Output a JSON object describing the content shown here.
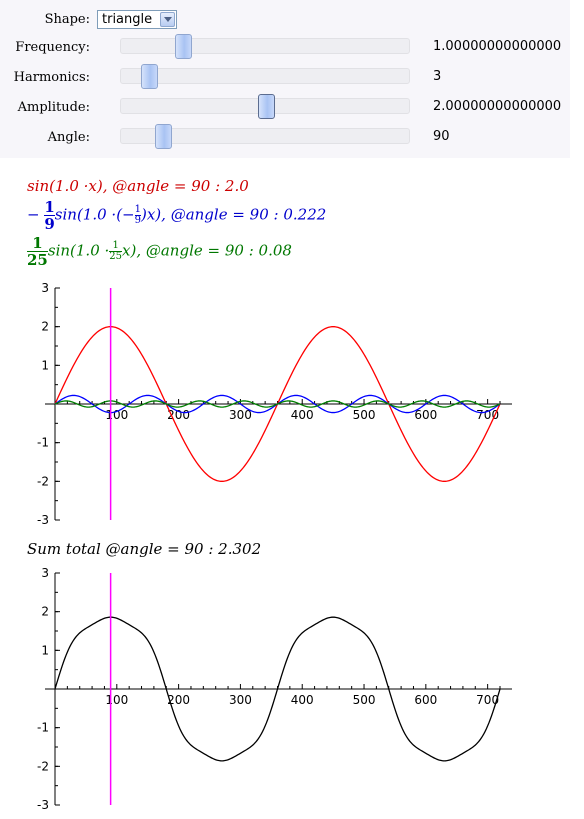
{
  "controls": {
    "shape": {
      "label": "Shape:",
      "value": "triangle"
    },
    "frequency": {
      "label": "Frequency:",
      "readout": "1.00000000000000",
      "position": 0.2
    },
    "harmonics": {
      "label": "Harmonics:",
      "readout": "3",
      "position": 0.075
    },
    "amplitude": {
      "label": "Amplitude:",
      "readout": "2.00000000000000",
      "position": 0.505
    },
    "angle": {
      "label": "Angle:",
      "readout": "90",
      "position": 0.125
    }
  },
  "formulas": {
    "red": {
      "text": "sin(1.0 ·x),  @angle = 90 :  2.0",
      "color": "#cc0000"
    },
    "blue": {
      "prefix": "−",
      "frac_num": "1",
      "frac_den": "9",
      "text_a": "sin(1.0 ·(−",
      "small_num": "1",
      "small_den": "9",
      "text_b": ")x),  @angle = 90 :  0.222",
      "color": "#0000cc"
    },
    "green": {
      "frac_num": "1",
      "frac_den": "25",
      "text_a": "sin(1.0 ·",
      "small_num": "1",
      "small_den": "25",
      "text_b": "x),  @angle = 90 :  0.08",
      "color": "#007700"
    }
  },
  "sum_total": {
    "text": "Sum total @angle = 90 :  2.302"
  },
  "chart_data": [
    {
      "type": "line",
      "title": "",
      "x_ticks": [
        100,
        200,
        300,
        400,
        500,
        600,
        700
      ],
      "y_ticks": [
        -3,
        -2,
        -1,
        1,
        2,
        3
      ],
      "xlim": [
        0,
        720
      ],
      "ylim": [
        -3,
        3
      ],
      "marker_x": 90,
      "series": [
        {
          "name": "sin(1.0 x)",
          "amplitude": 2.0,
          "harmonic": 1,
          "color": "#ff0000"
        },
        {
          "name": "-1/9 sin(-1/9 x)",
          "amplitude": 0.222,
          "harmonic": 3,
          "color": "#0000ff"
        },
        {
          "name": "1/25 sin(1/25 x)",
          "amplitude": 0.08,
          "harmonic": 5,
          "color": "#008000"
        }
      ],
      "marker_color": "#ff00ff"
    },
    {
      "type": "line",
      "title": "Sum total",
      "x_ticks": [
        100,
        200,
        300,
        400,
        500,
        600,
        700
      ],
      "y_ticks": [
        -3,
        -2,
        -1,
        1,
        2,
        3
      ],
      "xlim": [
        0,
        720
      ],
      "ylim": [
        -3,
        3
      ],
      "marker_x": 90,
      "series": [
        {
          "name": "sum",
          "components": [
            2.0,
            0.222,
            0.08
          ],
          "color": "#000000"
        }
      ],
      "marker_color": "#ff00ff"
    }
  ]
}
